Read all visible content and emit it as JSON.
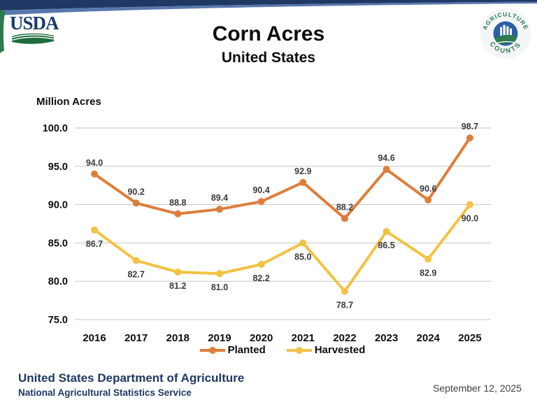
{
  "header": {
    "usda_logo_text": "USDA",
    "agriculture_counts": {
      "arc_top": "AGRICULTURE",
      "arc_bottom": "COUNTS"
    },
    "colors": {
      "navy": "#1f3864",
      "steel_blue": "#5878ae",
      "green": "#2d7a4e"
    }
  },
  "title": "Corn Acres",
  "subtitle": "United States",
  "chart_data": {
    "type": "line",
    "title": "Corn Acres",
    "subtitle": "United States",
    "ylabel": "Million Acres",
    "categories": [
      "2016",
      "2017",
      "2018",
      "2019",
      "2020",
      "2021",
      "2022",
      "2023",
      "2024",
      "2025"
    ],
    "series": [
      {
        "name": "Planted",
        "color": "#de7e3c",
        "label_position": "above",
        "values": [
          94.0,
          90.2,
          88.8,
          89.4,
          90.4,
          92.9,
          88.2,
          94.6,
          90.6,
          98.7
        ]
      },
      {
        "name": "Harvested",
        "color": "#f3c244",
        "label_position": "below",
        "values": [
          86.7,
          82.7,
          81.2,
          81.0,
          82.2,
          85.0,
          78.7,
          86.5,
          82.9,
          90.0
        ]
      }
    ],
    "ylim": [
      75,
      100
    ],
    "ytick_step": 5,
    "ytick_labels": [
      "75.0",
      "80.0",
      "85.0",
      "90.0",
      "95.0",
      "100.0"
    ],
    "grid": true,
    "gridline_color": "#c6c6c6",
    "legend_position": "bottom",
    "data_label_color": "#3a3a3a"
  },
  "footer": {
    "org_line1": "United States Department of Agriculture",
    "org_line2": "National Agricultural Statistics Service",
    "date": "September 12, 2025"
  }
}
